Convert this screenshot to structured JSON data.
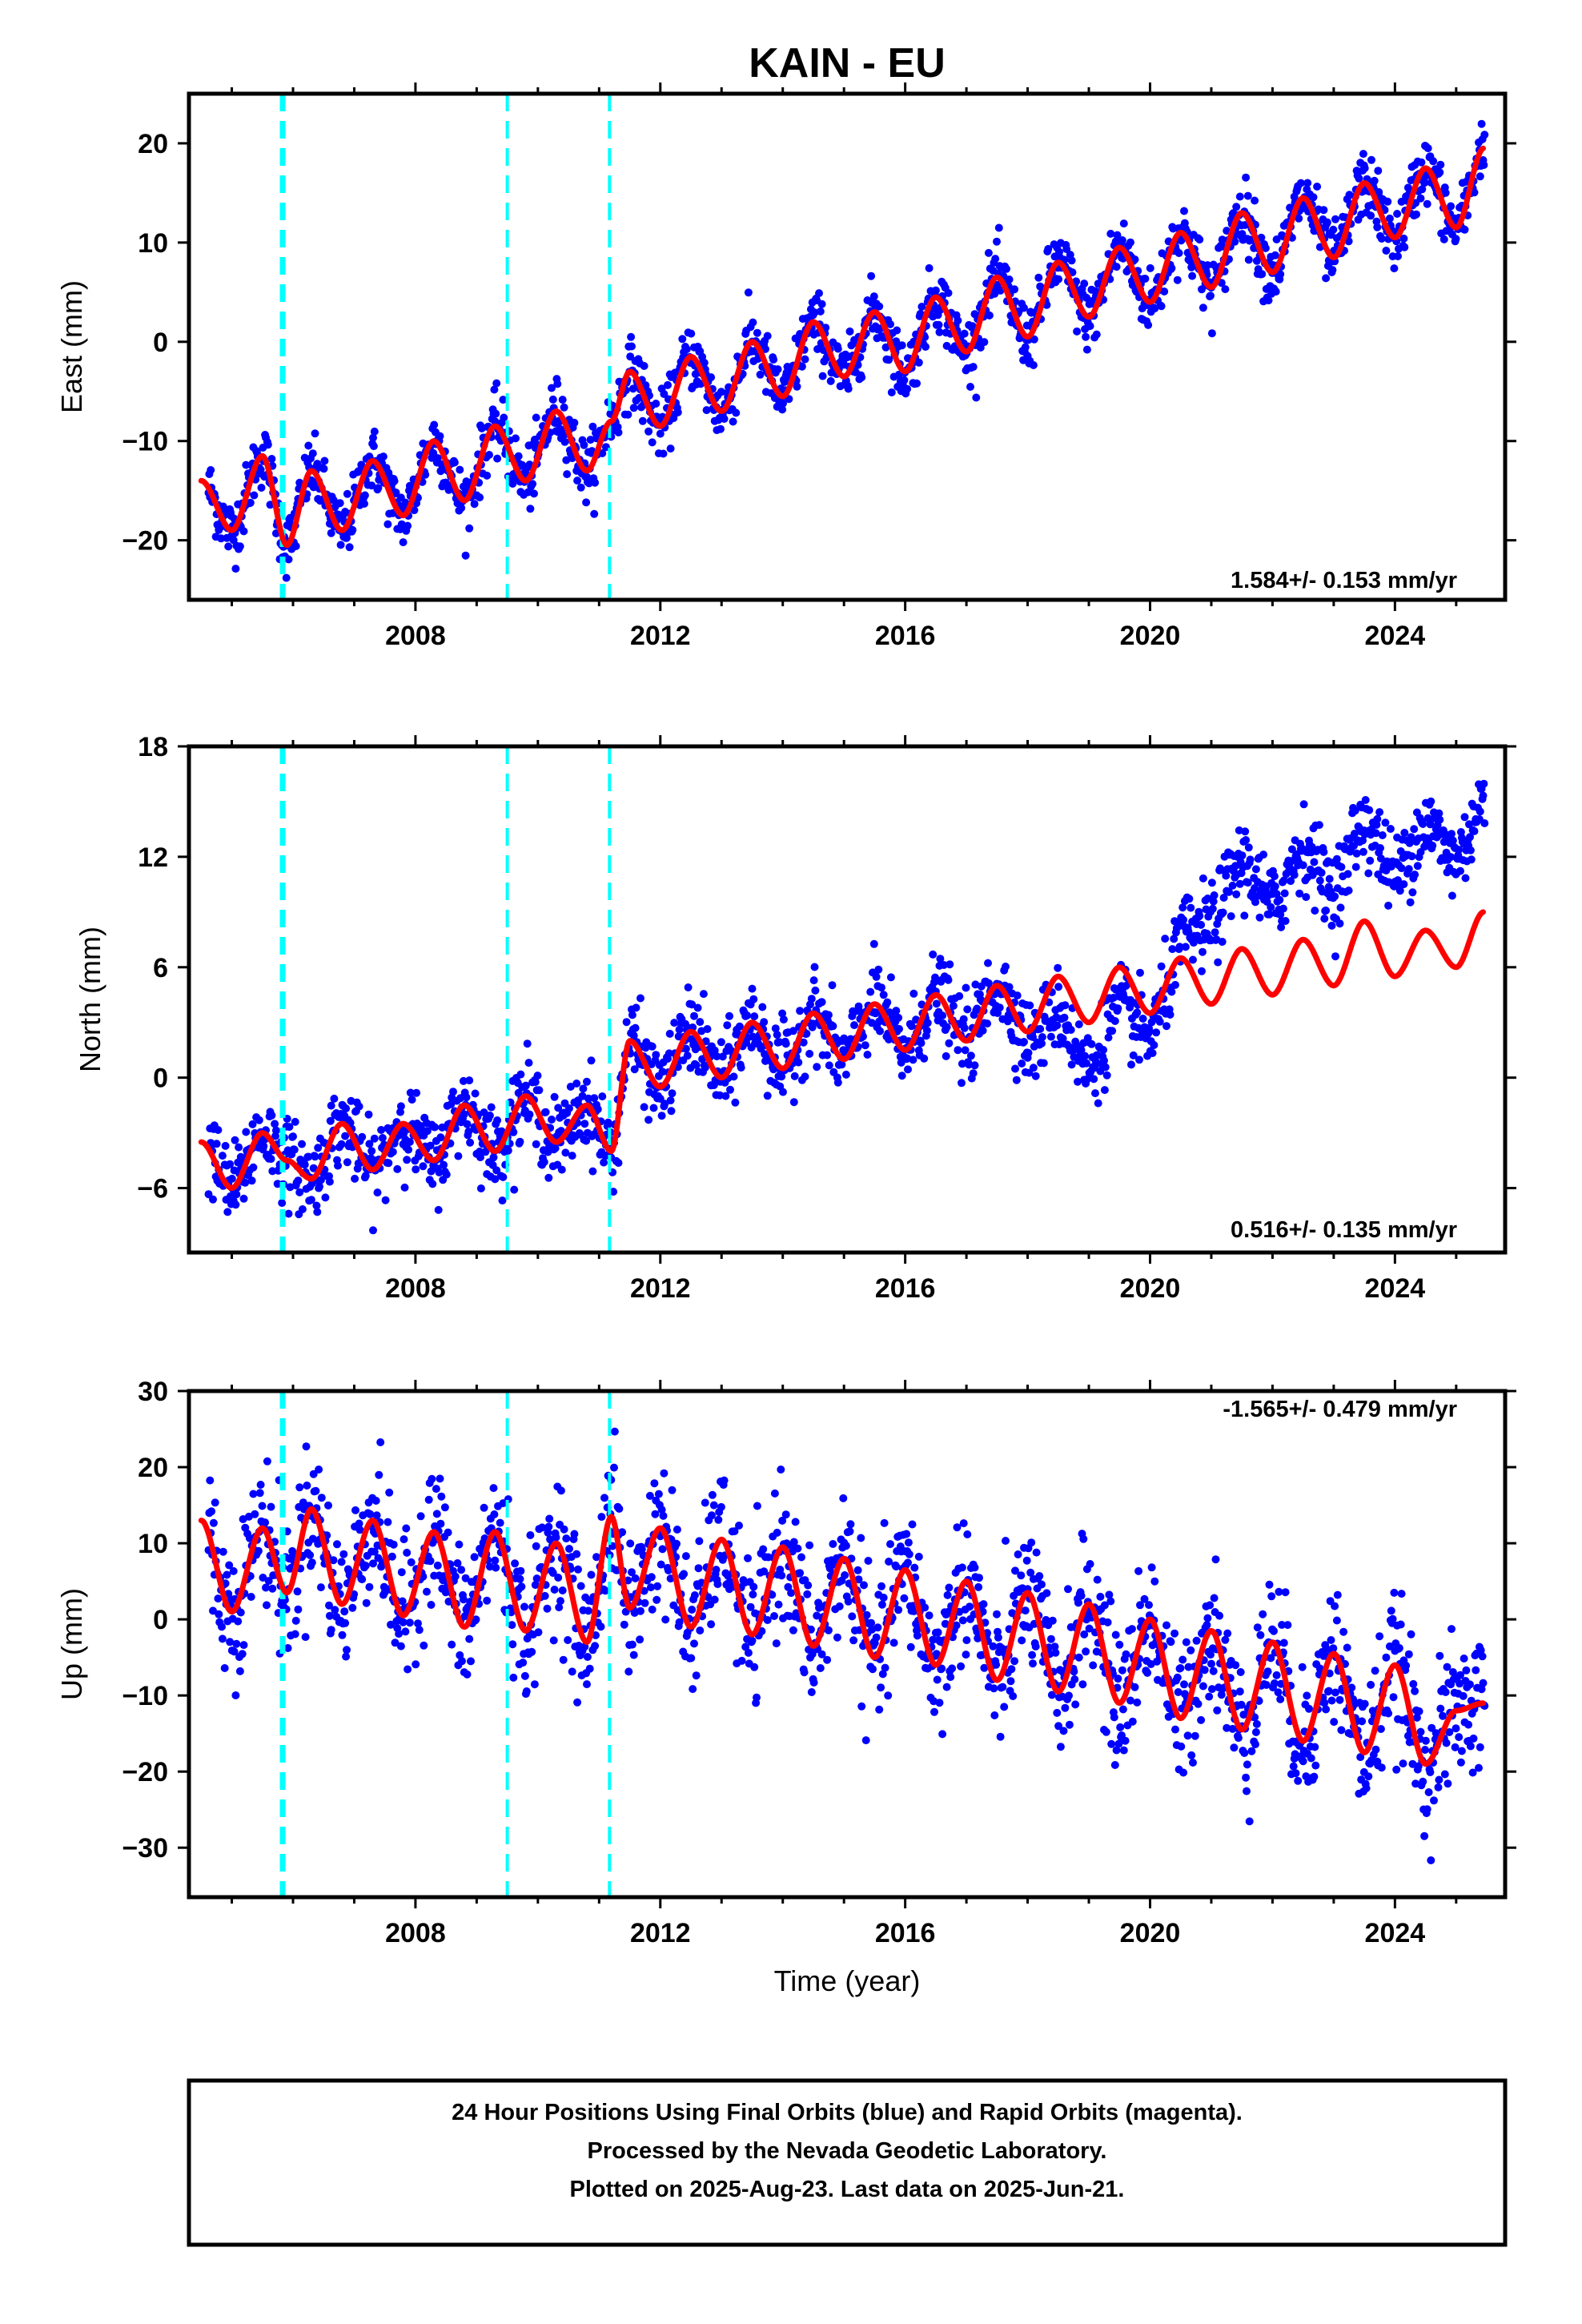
{
  "chart_data": {
    "title": "KAIN - EU",
    "xlabel": "Time (year)",
    "xlim": [
      2004.3,
      2025.8
    ],
    "x_ticks": [
      2008,
      2012,
      2016,
      2020,
      2024
    ],
    "vertical_dashed_lines": [
      2005.83,
      2009.5,
      2011.17
    ],
    "series_legend": "24 Hour Positions Using Final Orbits (blue) and Rapid Orbits (magenta).",
    "colors": {
      "data_points": "#0000ff",
      "model_fit": "#ff0000",
      "event_lines": "#00ffff",
      "frame": "#000000"
    },
    "panels": [
      {
        "type": "scatter",
        "component": "east",
        "ylabel": "East (mm)",
        "ylim": [
          -26,
          25
        ],
        "y_ticks": [
          -20,
          -10,
          0,
          10,
          20
        ],
        "rate_label": "1.584+/- 0.153 mm/yr",
        "rate_label_position": "bottom-right",
        "fit": {
          "x": [
            2004.5,
            2005.0,
            2005.5,
            2005.9,
            2006.3,
            2006.8,
            2007.3,
            2007.8,
            2008.3,
            2008.8,
            2009.3,
            2009.8,
            2010.3,
            2010.8,
            2011.2,
            2011.5,
            2012.0,
            2012.5,
            2013.0,
            2013.5,
            2014.0,
            2014.5,
            2015.0,
            2015.5,
            2016.0,
            2016.5,
            2017.0,
            2017.5,
            2018.0,
            2018.5,
            2019.0,
            2019.5,
            2020.0,
            2020.5,
            2021.0,
            2021.5,
            2022.0,
            2022.5,
            2023.0,
            2023.5,
            2024.0,
            2024.5,
            2025.0,
            2025.45
          ],
          "y": [
            -14,
            -19,
            -11.5,
            -20.5,
            -13,
            -19,
            -12,
            -17.5,
            -10,
            -16,
            -8.5,
            -14,
            -7,
            -13,
            -8,
            -3,
            -8.5,
            -1.5,
            -7,
            0,
            -5.5,
            2,
            -3.5,
            3,
            -3,
            4.5,
            -1,
            6.5,
            0.5,
            8,
            2.5,
            9.5,
            4,
            11,
            5.5,
            13,
            7,
            14.5,
            8.5,
            16,
            10.5,
            17.5,
            11.5,
            19.5
          ]
        }
      },
      {
        "type": "scatter",
        "component": "north",
        "ylabel": "North (mm)",
        "ylim": [
          -9.5,
          18
        ],
        "y_ticks": [
          -6,
          0,
          6,
          12,
          18
        ],
        "rate_label": "0.516+/- 0.135 mm/yr",
        "rate_label_position": "bottom-right",
        "fit": {
          "x": [
            2004.5,
            2005.0,
            2005.5,
            2005.9,
            2006.3,
            2006.8,
            2007.3,
            2007.8,
            2008.3,
            2008.8,
            2009.3,
            2009.8,
            2010.3,
            2010.8,
            2011.2,
            2011.5,
            2012.0,
            2012.5,
            2013.0,
            2013.5,
            2014.0,
            2014.5,
            2015.0,
            2015.5,
            2016.0,
            2016.5,
            2017.0,
            2017.5,
            2018.0,
            2018.5,
            2019.0,
            2019.5,
            2020.0,
            2020.5,
            2021.0,
            2021.5,
            2022.0,
            2022.5,
            2023.0,
            2023.5,
            2024.0,
            2024.5,
            2025.0,
            2025.45
          ],
          "y": [
            -3.5,
            -6.0,
            -3.0,
            -4.5,
            -5.5,
            -2.5,
            -5.0,
            -2.5,
            -4.5,
            -1.5,
            -4.0,
            -1.0,
            -3.5,
            -1.5,
            -4.0,
            2.0,
            -0.5,
            2.5,
            0.0,
            3.0,
            0.5,
            3.5,
            1.0,
            4.0,
            1.5,
            4.5,
            2.0,
            5.0,
            2.5,
            5.5,
            3.0,
            6.0,
            3.5,
            6.5,
            4.0,
            7.0,
            4.5,
            7.5,
            5.0,
            8.5,
            5.5,
            8.0,
            6.0,
            9.0
          ]
        }
      },
      {
        "type": "scatter",
        "component": "up",
        "ylabel": "Up (mm)",
        "ylim": [
          -36.5,
          30
        ],
        "y_ticks": [
          -30,
          -20,
          -10,
          0,
          10,
          20,
          30
        ],
        "rate_label": "-1.565+/- 0.479 mm/yr",
        "rate_label_position": "top-right",
        "fit": {
          "x": [
            2004.5,
            2005.0,
            2005.5,
            2005.9,
            2006.3,
            2006.8,
            2007.3,
            2007.8,
            2008.3,
            2008.8,
            2009.3,
            2009.8,
            2010.3,
            2010.8,
            2011.2,
            2011.5,
            2012.0,
            2012.5,
            2013.0,
            2013.5,
            2014.0,
            2014.5,
            2015.0,
            2015.5,
            2016.0,
            2016.5,
            2017.0,
            2017.5,
            2018.0,
            2018.5,
            2019.0,
            2019.5,
            2020.0,
            2020.5,
            2021.0,
            2021.5,
            2022.0,
            2022.5,
            2023.0,
            2023.5,
            2024.0,
            2024.5,
            2025.0,
            2025.45
          ],
          "y": [
            13,
            1,
            12,
            3.5,
            14.5,
            2,
            13,
            0.5,
            11.5,
            -1,
            11.5,
            -1.5,
            10,
            -3,
            13.5,
            1.5,
            12,
            -1,
            10.5,
            -2,
            9.5,
            -3.5,
            8,
            -5,
            6.5,
            -6,
            5,
            -8,
            3.5,
            -9.5,
            2,
            -11,
            0,
            -13,
            -1.5,
            -14.5,
            -3,
            -16,
            -4.5,
            -17.5,
            -6,
            -19,
            -12,
            -11
          ]
        }
      }
    ]
  },
  "caption": {
    "line1": "24 Hour Positions Using Final Orbits (blue) and Rapid Orbits (magenta).",
    "line2": "Processed by the Nevada Geodetic Laboratory.",
    "line3": "Plotted on 2025-Aug-23. Last data on 2025-Jun-21."
  }
}
